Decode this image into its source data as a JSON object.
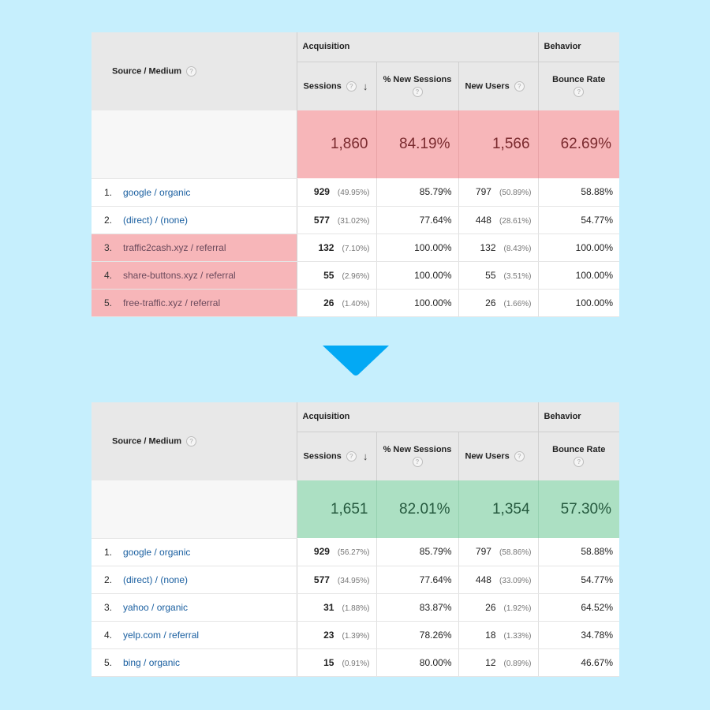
{
  "headers": {
    "source_medium": "Source / Medium",
    "acquisition": "Acquisition",
    "behavior": "Behavior",
    "sessions": "Sessions",
    "pct_new_sessions": "% New Sessions",
    "new_users": "New Users",
    "bounce_rate": "Bounce Rate",
    "help_glyph": "?",
    "sort_glyph": "↓",
    "help_icon": "question-circle-icon",
    "sort_icon": "arrow-down-icon"
  },
  "before": {
    "totals": {
      "sessions": "1,860",
      "pct_new_sessions": "84.19%",
      "new_users": "1,566",
      "bounce_rate": "62.69%"
    },
    "rows": [
      {
        "index": "1.",
        "source": "google / organic",
        "sessions": "929",
        "sessions_pct": "(49.95%)",
        "pct_new": "85.79%",
        "new_users": "797",
        "new_users_pct": "(50.89%)",
        "bounce": "58.88%"
      },
      {
        "index": "2.",
        "source": "(direct) / (none)",
        "sessions": "577",
        "sessions_pct": "(31.02%)",
        "pct_new": "77.64%",
        "new_users": "448",
        "new_users_pct": "(28.61%)",
        "bounce": "54.77%"
      },
      {
        "index": "3.",
        "source": "traffic2cash.xyz / referral",
        "sessions": "132",
        "sessions_pct": "(7.10%)",
        "pct_new": "100.00%",
        "new_users": "132",
        "new_users_pct": "(8.43%)",
        "bounce": "100.00%"
      },
      {
        "index": "4.",
        "source": "share-buttons.xyz / referral",
        "sessions": "55",
        "sessions_pct": "(2.96%)",
        "pct_new": "100.00%",
        "new_users": "55",
        "new_users_pct": "(3.51%)",
        "bounce": "100.00%"
      },
      {
        "index": "5.",
        "source": "free-traffic.xyz / referral",
        "sessions": "26",
        "sessions_pct": "(1.40%)",
        "pct_new": "100.00%",
        "new_users": "26",
        "new_users_pct": "(1.66%)",
        "bounce": "100.00%"
      }
    ]
  },
  "after": {
    "totals": {
      "sessions": "1,651",
      "pct_new_sessions": "82.01%",
      "new_users": "1,354",
      "bounce_rate": "57.30%"
    },
    "rows": [
      {
        "index": "1.",
        "source": "google / organic",
        "sessions": "929",
        "sessions_pct": "(56.27%)",
        "pct_new": "85.79%",
        "new_users": "797",
        "new_users_pct": "(58.86%)",
        "bounce": "58.88%"
      },
      {
        "index": "2.",
        "source": "(direct) / (none)",
        "sessions": "577",
        "sessions_pct": "(34.95%)",
        "pct_new": "77.64%",
        "new_users": "448",
        "new_users_pct": "(33.09%)",
        "bounce": "54.77%"
      },
      {
        "index": "3.",
        "source": "yahoo / organic",
        "sessions": "31",
        "sessions_pct": "(1.88%)",
        "pct_new": "83.87%",
        "new_users": "26",
        "new_users_pct": "(1.92%)",
        "bounce": "64.52%"
      },
      {
        "index": "4.",
        "source": "yelp.com / referral",
        "sessions": "23",
        "sessions_pct": "(1.39%)",
        "pct_new": "78.26%",
        "new_users": "18",
        "new_users_pct": "(1.33%)",
        "bounce": "34.78%"
      },
      {
        "index": "5.",
        "source": "bing / organic",
        "sessions": "15",
        "sessions_pct": "(0.91%)",
        "pct_new": "80.00%",
        "new_users": "12",
        "new_users_pct": "(0.89%)",
        "bounce": "46.67%"
      }
    ]
  },
  "colors": {
    "background": "#c6effd",
    "flag_red": "#f7b6b9",
    "good_green": "#ace0c3",
    "arrow_blue": "#03a9f4",
    "link_blue": "#1a5fa0"
  },
  "transition_icon": "triangle-down-icon"
}
